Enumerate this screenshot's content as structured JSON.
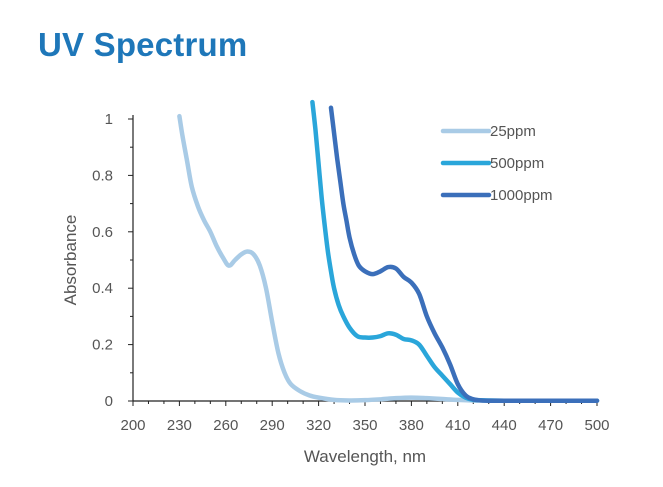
{
  "page": {
    "title": "UV Spectrum"
  },
  "chart_data": {
    "type": "line",
    "title": "UV Spectrum",
    "xlabel": "Wavelength, nm",
    "ylabel": "Absorbance",
    "xlim": [
      200,
      500
    ],
    "ylim": [
      0,
      1
    ],
    "x_ticks": [
      200,
      230,
      260,
      290,
      320,
      350,
      380,
      410,
      440,
      470,
      500
    ],
    "y_ticks": [
      0,
      0.2,
      0.4,
      0.6,
      0.8,
      1
    ],
    "grid": false,
    "legend_position": "top-right",
    "series": [
      {
        "name": "25ppm",
        "color": "#a9cbe6",
        "x": [
          230,
          232,
          235,
          238,
          242,
          246,
          250,
          254,
          258,
          262,
          266,
          270,
          274,
          278,
          282,
          286,
          290,
          294,
          298,
          302,
          308,
          314,
          320,
          330,
          340,
          350,
          360,
          370,
          380,
          390,
          400,
          410,
          420,
          440,
          460,
          480,
          500
        ],
        "y": [
          1.01,
          0.94,
          0.85,
          0.76,
          0.69,
          0.64,
          0.6,
          0.55,
          0.51,
          0.48,
          0.5,
          0.52,
          0.53,
          0.52,
          0.48,
          0.4,
          0.28,
          0.17,
          0.1,
          0.06,
          0.035,
          0.02,
          0.012,
          0.004,
          0.002,
          0.003,
          0.006,
          0.01,
          0.012,
          0.01,
          0.007,
          0.004,
          0.002,
          0.001,
          0.001,
          0.001,
          0.001
        ]
      },
      {
        "name": "500ppm",
        "color": "#2aa6da",
        "x": [
          316,
          318,
          320,
          322,
          324,
          326,
          328,
          330,
          333,
          336,
          340,
          345,
          350,
          355,
          360,
          365,
          370,
          375,
          380,
          385,
          390,
          395,
          400,
          405,
          410,
          415,
          420,
          430,
          440,
          460,
          480,
          500
        ],
        "y": [
          1.06,
          0.96,
          0.84,
          0.72,
          0.62,
          0.53,
          0.46,
          0.4,
          0.34,
          0.3,
          0.26,
          0.23,
          0.225,
          0.225,
          0.23,
          0.24,
          0.235,
          0.22,
          0.215,
          0.2,
          0.16,
          0.12,
          0.09,
          0.06,
          0.03,
          0.012,
          0.004,
          0.002,
          0.001,
          0.001,
          0.001,
          0.001
        ]
      },
      {
        "name": "1000ppm",
        "color": "#3b6fba",
        "x": [
          328,
          330,
          332,
          334,
          336,
          338,
          340,
          343,
          346,
          350,
          355,
          360,
          365,
          370,
          375,
          380,
          385,
          390,
          395,
          400,
          405,
          410,
          415,
          420,
          425,
          430,
          440,
          460,
          480,
          500
        ],
        "y": [
          1.04,
          0.95,
          0.86,
          0.78,
          0.7,
          0.64,
          0.58,
          0.52,
          0.48,
          0.46,
          0.45,
          0.46,
          0.475,
          0.47,
          0.44,
          0.42,
          0.38,
          0.3,
          0.24,
          0.19,
          0.13,
          0.06,
          0.02,
          0.006,
          0.002,
          0.001,
          0.001,
          0.001,
          0.001,
          0.001
        ]
      }
    ]
  }
}
